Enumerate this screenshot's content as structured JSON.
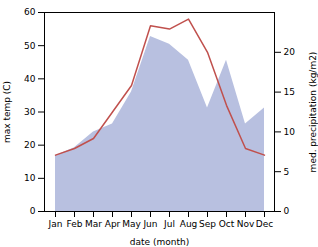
{
  "chart_data": {
    "type": "line",
    "categories": [
      "Jan",
      "Feb",
      "Mar",
      "Apr",
      "May",
      "Jun",
      "Jul",
      "Aug",
      "Sep",
      "Oct",
      "Nov",
      "Dec"
    ],
    "xlabel": "date (month)",
    "ylabel": "max temp (C)",
    "y2label": "med. precipitation (kg/m2)",
    "ylim": [
      0,
      60
    ],
    "yticks": [
      0,
      10,
      20,
      30,
      40,
      50,
      60
    ],
    "y2lim": [
      0,
      25
    ],
    "y2ticks": [
      0,
      5,
      10,
      15,
      20
    ],
    "series": [
      {
        "type": "area",
        "axis": "y2",
        "color": "#b8c0e0",
        "values": [
          7,
          8,
          10,
          11,
          15,
          22,
          21,
          19,
          13,
          19,
          11,
          13
        ]
      },
      {
        "type": "line",
        "color": "#c0504d",
        "values": [
          17,
          19,
          22,
          30,
          38,
          56,
          55,
          58,
          48,
          32,
          19,
          17
        ]
      }
    ]
  }
}
